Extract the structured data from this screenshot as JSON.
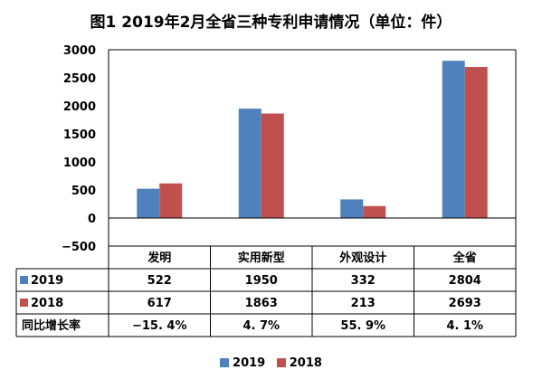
{
  "chart_data": {
    "type": "bar",
    "title": "图1  2019年2月全省三种专利申请情况（单位：件）",
    "categories": [
      "发明",
      "实用新型",
      "外观设计",
      "全省"
    ],
    "series": [
      {
        "name": "2019",
        "color": "#4f81bd",
        "values": [
          522,
          1950,
          332,
          2804
        ]
      },
      {
        "name": "2018",
        "color": "#c0504d",
        "values": [
          617,
          1863,
          213,
          2693
        ]
      }
    ],
    "yticks": [
      "3000",
      "2500",
      "2000",
      "1500",
      "1000",
      "500",
      "0",
      "−500"
    ],
    "ylim": [
      -500,
      3000
    ],
    "grid": false,
    "legend_position": "bottom",
    "table": {
      "rows": [
        {
          "label": "2019",
          "cells": [
            "522",
            "1950",
            "332",
            "2804"
          ],
          "color": "#4f81bd"
        },
        {
          "label": "2018",
          "cells": [
            "617",
            "1863",
            "213",
            "2693"
          ],
          "color": "#c0504d"
        },
        {
          "label": "同比增长率",
          "cells": [
            "−15. 4%",
            "4. 7%",
            "55. 9%",
            "4. 1%"
          ]
        }
      ]
    }
  }
}
